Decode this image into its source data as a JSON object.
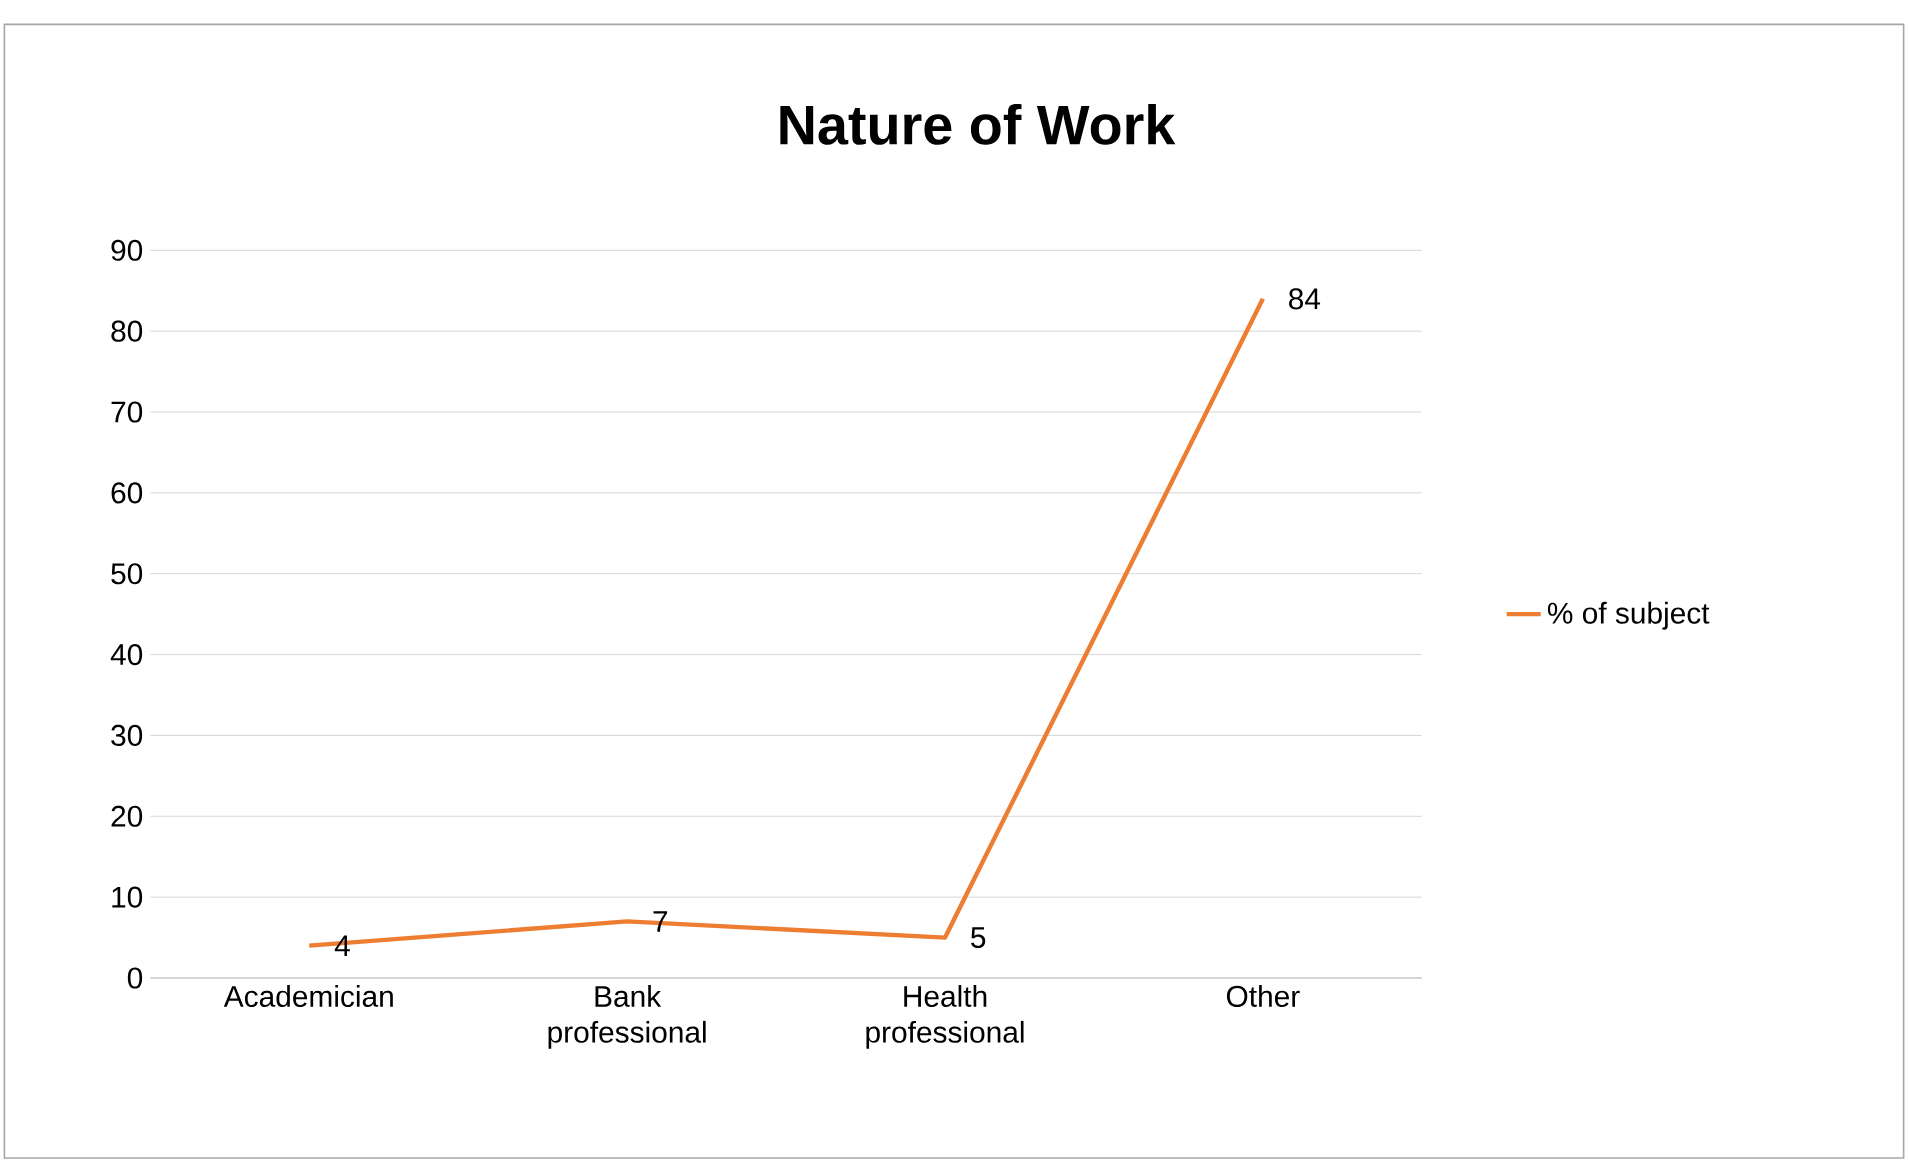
{
  "chart_data": {
    "type": "line",
    "title": "Nature of Work",
    "categories": [
      "Academician",
      "Bank professional",
      "Health professional",
      "Other"
    ],
    "series": [
      {
        "name": "% of subject",
        "color": "#ed7d31",
        "values": [
          4,
          7,
          5,
          84
        ]
      }
    ],
    "ylim": [
      0,
      90
    ],
    "yticks": [
      0,
      10,
      20,
      30,
      40,
      50,
      60,
      70,
      80,
      90
    ],
    "grid": "y",
    "legend": "right",
    "data_labels": true,
    "marker": "none"
  }
}
